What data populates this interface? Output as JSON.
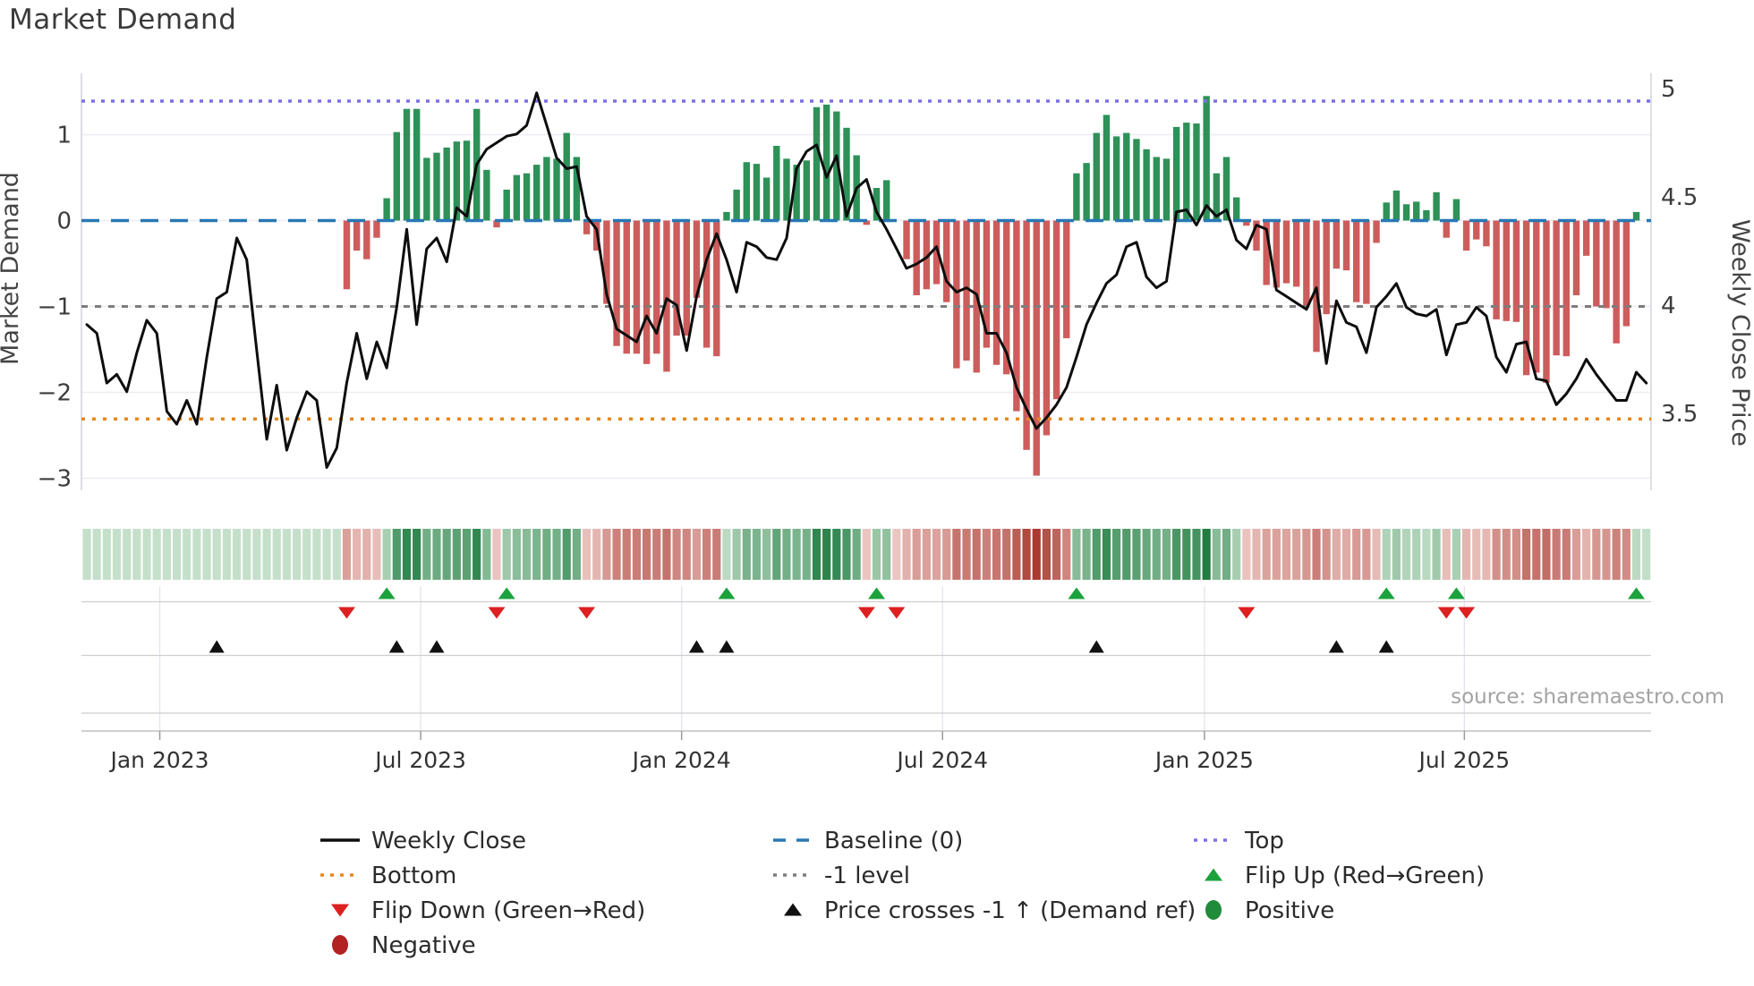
{
  "page": {
    "title": "Market Demand",
    "source": "source: sharemaestro.com"
  },
  "colors": {
    "bar_positive": "#2e9158",
    "bar_negative": "#cd5c5c",
    "price_line": "#0d0d0d",
    "baseline": "#2878b4",
    "top_line": "#7b70e6",
    "minus1_line": "#7d7d7d",
    "bottom_line": "#e8871d",
    "flip_up": "#1ca23c",
    "flip_down": "#dd2020",
    "cross_marker": "#111111",
    "positive_dot": "#208b3a",
    "negative_dot": "#b22222",
    "grid": "#ececf4",
    "spine": "#d4d4dc",
    "row_line": "#cfcfcf",
    "tick_text": "#3c3c3c",
    "axis_title": "#444444",
    "legend_text": "#2b2b2b"
  },
  "chart_data": {
    "type": "bar+line",
    "title": "Market Demand",
    "left_axis": {
      "label": "Market Demand",
      "ticks": [
        "1",
        "0",
        "−1",
        "−2",
        "−3"
      ],
      "tick_values": [
        1,
        0,
        -1,
        -2,
        -3
      ]
    },
    "right_axis": {
      "label": "Weekly Close Price",
      "ticks": [
        "5",
        "4.5",
        "4",
        "3.5"
      ],
      "tick_values": [
        5,
        4.5,
        4,
        3.5
      ]
    },
    "x_axis": {
      "tick_labels": [
        "Jan 2023",
        "Jul 2023",
        "Jan 2024",
        "Jul 2024",
        "Jan 2025",
        "Jul 2025"
      ],
      "tick_week_positions": [
        7.3,
        33.4,
        59.5,
        85.6,
        111.8,
        137.8
      ],
      "weeks_total": 157
    },
    "ref_lines": {
      "top": 1.39,
      "baseline": 0,
      "minus1": -1,
      "bottom": -2.31
    },
    "series": {
      "demand_bars": [
        0.02,
        0.02,
        0.02,
        0.02,
        0.02,
        0.02,
        0.02,
        0.02,
        0.02,
        0.02,
        0.02,
        0.02,
        0.02,
        0.02,
        0.02,
        0.02,
        0.02,
        0.02,
        0.02,
        0.02,
        0.02,
        0.02,
        0.02,
        0.02,
        0.02,
        0.02,
        -0.8,
        -0.35,
        -0.45,
        -0.2,
        0.26,
        1.03,
        1.3,
        1.3,
        0.73,
        0.79,
        0.85,
        0.92,
        0.93,
        1.3,
        0.59,
        -0.08,
        0.36,
        0.53,
        0.55,
        0.65,
        0.74,
        0.72,
        1.02,
        0.74,
        -0.16,
        -0.35,
        -0.97,
        -1.46,
        -1.55,
        -1.55,
        -1.67,
        -1.55,
        -1.76,
        -1.34,
        -1.34,
        -0.9,
        -1.48,
        -1.58,
        0.1,
        0.36,
        0.68,
        0.66,
        0.5,
        0.87,
        0.72,
        0.65,
        0.7,
        1.32,
        1.35,
        1.27,
        1.08,
        0.76,
        -0.05,
        0.38,
        0.47,
        -0.03,
        -0.45,
        -0.87,
        -0.8,
        -0.74,
        -0.95,
        -1.72,
        -1.63,
        -1.77,
        -1.48,
        -1.68,
        -1.79,
        -2.22,
        -2.67,
        -2.97,
        -2.5,
        -2.08,
        -1.37,
        0.55,
        0.67,
        1.02,
        1.23,
        0.98,
        1.02,
        0.95,
        0.83,
        0.74,
        0.72,
        1.09,
        1.14,
        1.13,
        1.45,
        0.55,
        0.74,
        0.27,
        -0.06,
        -0.35,
        -0.75,
        -0.78,
        -0.73,
        -0.77,
        -1.0,
        -1.53,
        -1.09,
        -0.56,
        -0.58,
        -0.95,
        -0.97,
        -0.26,
        0.21,
        0.35,
        0.19,
        0.22,
        0.12,
        0.33,
        -0.2,
        0.25,
        -0.35,
        -0.22,
        -0.3,
        -1.15,
        -1.17,
        -1.18,
        -1.8,
        -1.77,
        -1.89,
        -1.57,
        -1.58,
        -0.87,
        -0.41,
        -1.0,
        -1.02,
        -1.43,
        -1.23,
        0.1,
        0.04
      ],
      "weekly_close_price": [
        3.91,
        3.87,
        3.64,
        3.68,
        3.6,
        3.78,
        3.93,
        3.87,
        3.51,
        3.45,
        3.56,
        3.45,
        3.76,
        4.03,
        4.06,
        4.31,
        4.21,
        3.79,
        3.38,
        3.63,
        3.33,
        3.48,
        3.6,
        3.56,
        3.25,
        3.34,
        3.64,
        3.87,
        3.66,
        3.83,
        3.71,
        3.99,
        4.35,
        3.91,
        4.26,
        4.31,
        4.2,
        4.45,
        4.41,
        4.65,
        4.72,
        4.75,
        4.78,
        4.79,
        4.83,
        4.98,
        4.83,
        4.68,
        4.63,
        4.64,
        4.41,
        4.35,
        4.05,
        3.89,
        3.86,
        3.83,
        3.95,
        3.87,
        4.03,
        4.0,
        3.79,
        4.04,
        4.21,
        4.33,
        4.21,
        4.06,
        4.29,
        4.27,
        4.22,
        4.21,
        4.31,
        4.63,
        4.71,
        4.74,
        4.59,
        4.69,
        4.41,
        4.54,
        4.58,
        4.43,
        4.35,
        4.26,
        4.17,
        4.19,
        4.22,
        4.27,
        4.11,
        4.06,
        4.08,
        4.05,
        3.87,
        3.87,
        3.78,
        3.62,
        3.52,
        3.43,
        3.48,
        3.54,
        3.62,
        3.76,
        3.91,
        4.01,
        4.1,
        4.14,
        4.27,
        4.29,
        4.13,
        4.08,
        4.11,
        4.43,
        4.44,
        4.37,
        4.46,
        4.41,
        4.44,
        4.3,
        4.26,
        4.37,
        4.35,
        4.07,
        4.04,
        4.01,
        3.98,
        4.08,
        3.73,
        4.02,
        3.92,
        3.9,
        3.78,
        3.99,
        4.04,
        4.1,
        3.99,
        3.96,
        3.95,
        3.98,
        3.77,
        3.91,
        3.92,
        3.99,
        3.95,
        3.76,
        3.69,
        3.82,
        3.83,
        3.66,
        3.65,
        3.54,
        3.59,
        3.66,
        3.75,
        3.68,
        3.62,
        3.56,
        3.56,
        3.69,
        3.64
      ]
    },
    "markers": {
      "flip_up_weeks": [
        30,
        42,
        64,
        79,
        99,
        130,
        137,
        155
      ],
      "flip_down_weeks": [
        26,
        41,
        50,
        78,
        81,
        116,
        136,
        138
      ],
      "price_cross_weeks": [
        13,
        31,
        35,
        61,
        64,
        101,
        125,
        130
      ]
    },
    "legend": {
      "columns": [
        [
          {
            "swatch": "line",
            "color_key": "price_line",
            "label": "Weekly Close"
          },
          {
            "swatch": "dotted",
            "color_key": "bottom_line",
            "label": "Bottom"
          },
          {
            "swatch": "tri_down",
            "color_key": "flip_down",
            "label": "Flip Down (Green→Red)"
          },
          {
            "swatch": "circle",
            "color_key": "negative_dot",
            "label": "Negative"
          }
        ],
        [
          {
            "swatch": "dashed",
            "color_key": "baseline",
            "label": "Baseline (0)"
          },
          {
            "swatch": "dotted",
            "color_key": "minus1_line",
            "label": "-1 level"
          },
          {
            "swatch": "tri_up",
            "color_key": "cross_marker",
            "label": "Price crosses -1 ↑ (Demand ref)"
          }
        ],
        [
          {
            "swatch": "dotted",
            "color_key": "top_line",
            "label": "Top"
          },
          {
            "swatch": "tri_up",
            "color_key": "flip_up",
            "label": "Flip Up (Red→Green)"
          },
          {
            "swatch": "circle",
            "color_key": "positive_dot",
            "label": "Positive"
          }
        ]
      ]
    },
    "source_annotation": "source: sharemaestro.com"
  }
}
